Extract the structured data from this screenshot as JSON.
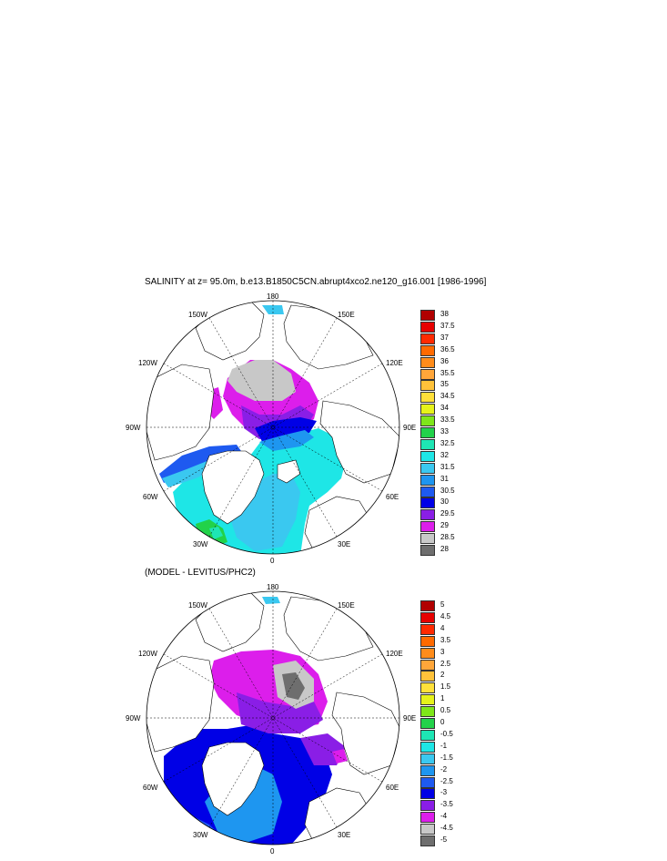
{
  "panel1": {
    "title": "SALINITY at z=  95.0m, b.e13.B1850C5CN.abrupt4xco2.ne120_g16.001 [1986-1996]",
    "lon_labels": {
      "n180": "180",
      "e150": "150E",
      "e120": "120E",
      "e90": "90E",
      "e60": "60E",
      "e30": "30E",
      "s0": "0",
      "w30": "30W",
      "w60": "60W",
      "w90": "90W",
      "w120": "120W",
      "w150": "150W"
    },
    "colorbar": {
      "labels": [
        "38",
        "37.5",
        "37",
        "36.5",
        "36",
        "35.5",
        "35",
        "34.5",
        "34",
        "33.5",
        "33",
        "32.5",
        "32",
        "31.5",
        "31",
        "30.5",
        "30",
        "29.5",
        "29",
        "28.5",
        "28"
      ],
      "colors": [
        "#b10000",
        "#e60000",
        "#ff2a00",
        "#ff6a00",
        "#ff8c1a",
        "#ffa63a",
        "#ffc23a",
        "#ffe03a",
        "#e6f21a",
        "#7fe61a",
        "#22d24a",
        "#1ee6b4",
        "#1ee6e6",
        "#3ac8f0",
        "#1e96f0",
        "#1e5af0",
        "#0000e6",
        "#8a1ee6",
        "#dc1eeb",
        "#c8c8c8",
        "#6e6e6e"
      ]
    }
  },
  "panel2": {
    "title": "(MODEL - LEVITUS/PHC2)",
    "lon_labels": {
      "n180": "180",
      "e150": "150E",
      "e120": "120E",
      "e90": "90E",
      "e60": "60E",
      "e30": "30E",
      "s0": "0",
      "w30": "30W",
      "w60": "60W",
      "w90": "90W",
      "w120": "120W",
      "w150": "150W"
    },
    "colorbar": {
      "labels": [
        "5",
        "4.5",
        "4",
        "3.5",
        "3",
        "2.5",
        "2",
        "1.5",
        "1",
        "0.5",
        "0",
        "-0.5",
        "-1",
        "-1.5",
        "-2",
        "-2.5",
        "-3",
        "-3.5",
        "-4",
        "-4.5",
        "-5"
      ],
      "colors": [
        "#b10000",
        "#e60000",
        "#ff2a00",
        "#ff6a00",
        "#ff8c1a",
        "#ffa63a",
        "#ffc23a",
        "#ffe03a",
        "#e6f21a",
        "#7fe61a",
        "#22d24a",
        "#1ee6b4",
        "#1ee6e6",
        "#3ac8f0",
        "#1e96f0",
        "#1e5af0",
        "#0000e6",
        "#8a1ee6",
        "#dc1eeb",
        "#c8c8c8",
        "#6e6e6e"
      ]
    }
  }
}
